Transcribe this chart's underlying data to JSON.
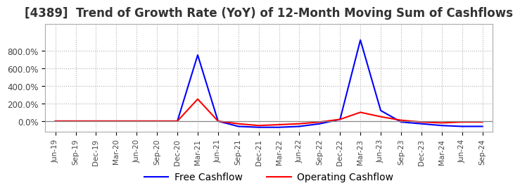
{
  "title": "[4389]  Trend of Growth Rate (YoY) of 12-Month Moving Sum of Cashflows",
  "title_fontsize": 12,
  "background_color": "#ffffff",
  "grid_color": "#b0b0b0",
  "x_labels": [
    "Jun-19",
    "Sep-19",
    "Dec-19",
    "Mar-20",
    "Jun-20",
    "Sep-20",
    "Dec-20",
    "Mar-21",
    "Jun-21",
    "Sep-21",
    "Dec-21",
    "Mar-22",
    "Jun-22",
    "Sep-22",
    "Dec-22",
    "Mar-23",
    "Jun-23",
    "Sep-23",
    "Dec-23",
    "Mar-24",
    "Jun-24",
    "Sep-24"
  ],
  "operating_cashflow": [
    0.0,
    0.0,
    0.0,
    0.0,
    0.0,
    0.0,
    0.0,
    2.5,
    0.0,
    -0.3,
    -0.5,
    -0.4,
    -0.3,
    -0.1,
    0.2,
    1.0,
    0.5,
    0.1,
    -0.1,
    -0.2,
    -0.1,
    -0.1
  ],
  "free_cashflow": [
    0.0,
    0.0,
    0.0,
    0.0,
    0.0,
    0.0,
    0.0,
    7.5,
    0.0,
    -0.6,
    -0.7,
    -0.7,
    -0.6,
    -0.3,
    0.2,
    9.2,
    1.2,
    -0.1,
    -0.3,
    -0.5,
    -0.6,
    -0.6
  ],
  "ylim_min": -1.2,
  "ylim_max": 11.0,
  "ytick_vals": [
    0.0,
    2.0,
    4.0,
    6.0,
    8.0
  ],
  "ytick_labels": [
    "0.0%",
    "200.0%",
    "400.0%",
    "600.0%",
    "800.0%"
  ],
  "operating_color": "#ff0000",
  "free_color": "#0000ff",
  "legend_labels": [
    "Operating Cashflow",
    "Free Cashflow"
  ]
}
